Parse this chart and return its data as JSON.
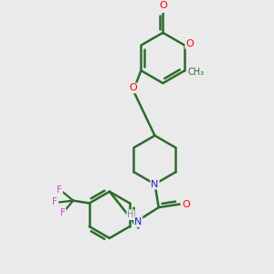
{
  "bg_color": "#eaeaea",
  "bond_color": "#2d6b2d",
  "bond_width": 1.8,
  "atom_colors": {
    "O": "#ff0000",
    "N": "#2222cc",
    "F": "#cc44cc",
    "H": "#888888",
    "C": "#2d6b2d"
  },
  "xlim": [
    -3.5,
    3.5
  ],
  "ylim": [
    -4.8,
    3.2
  ]
}
